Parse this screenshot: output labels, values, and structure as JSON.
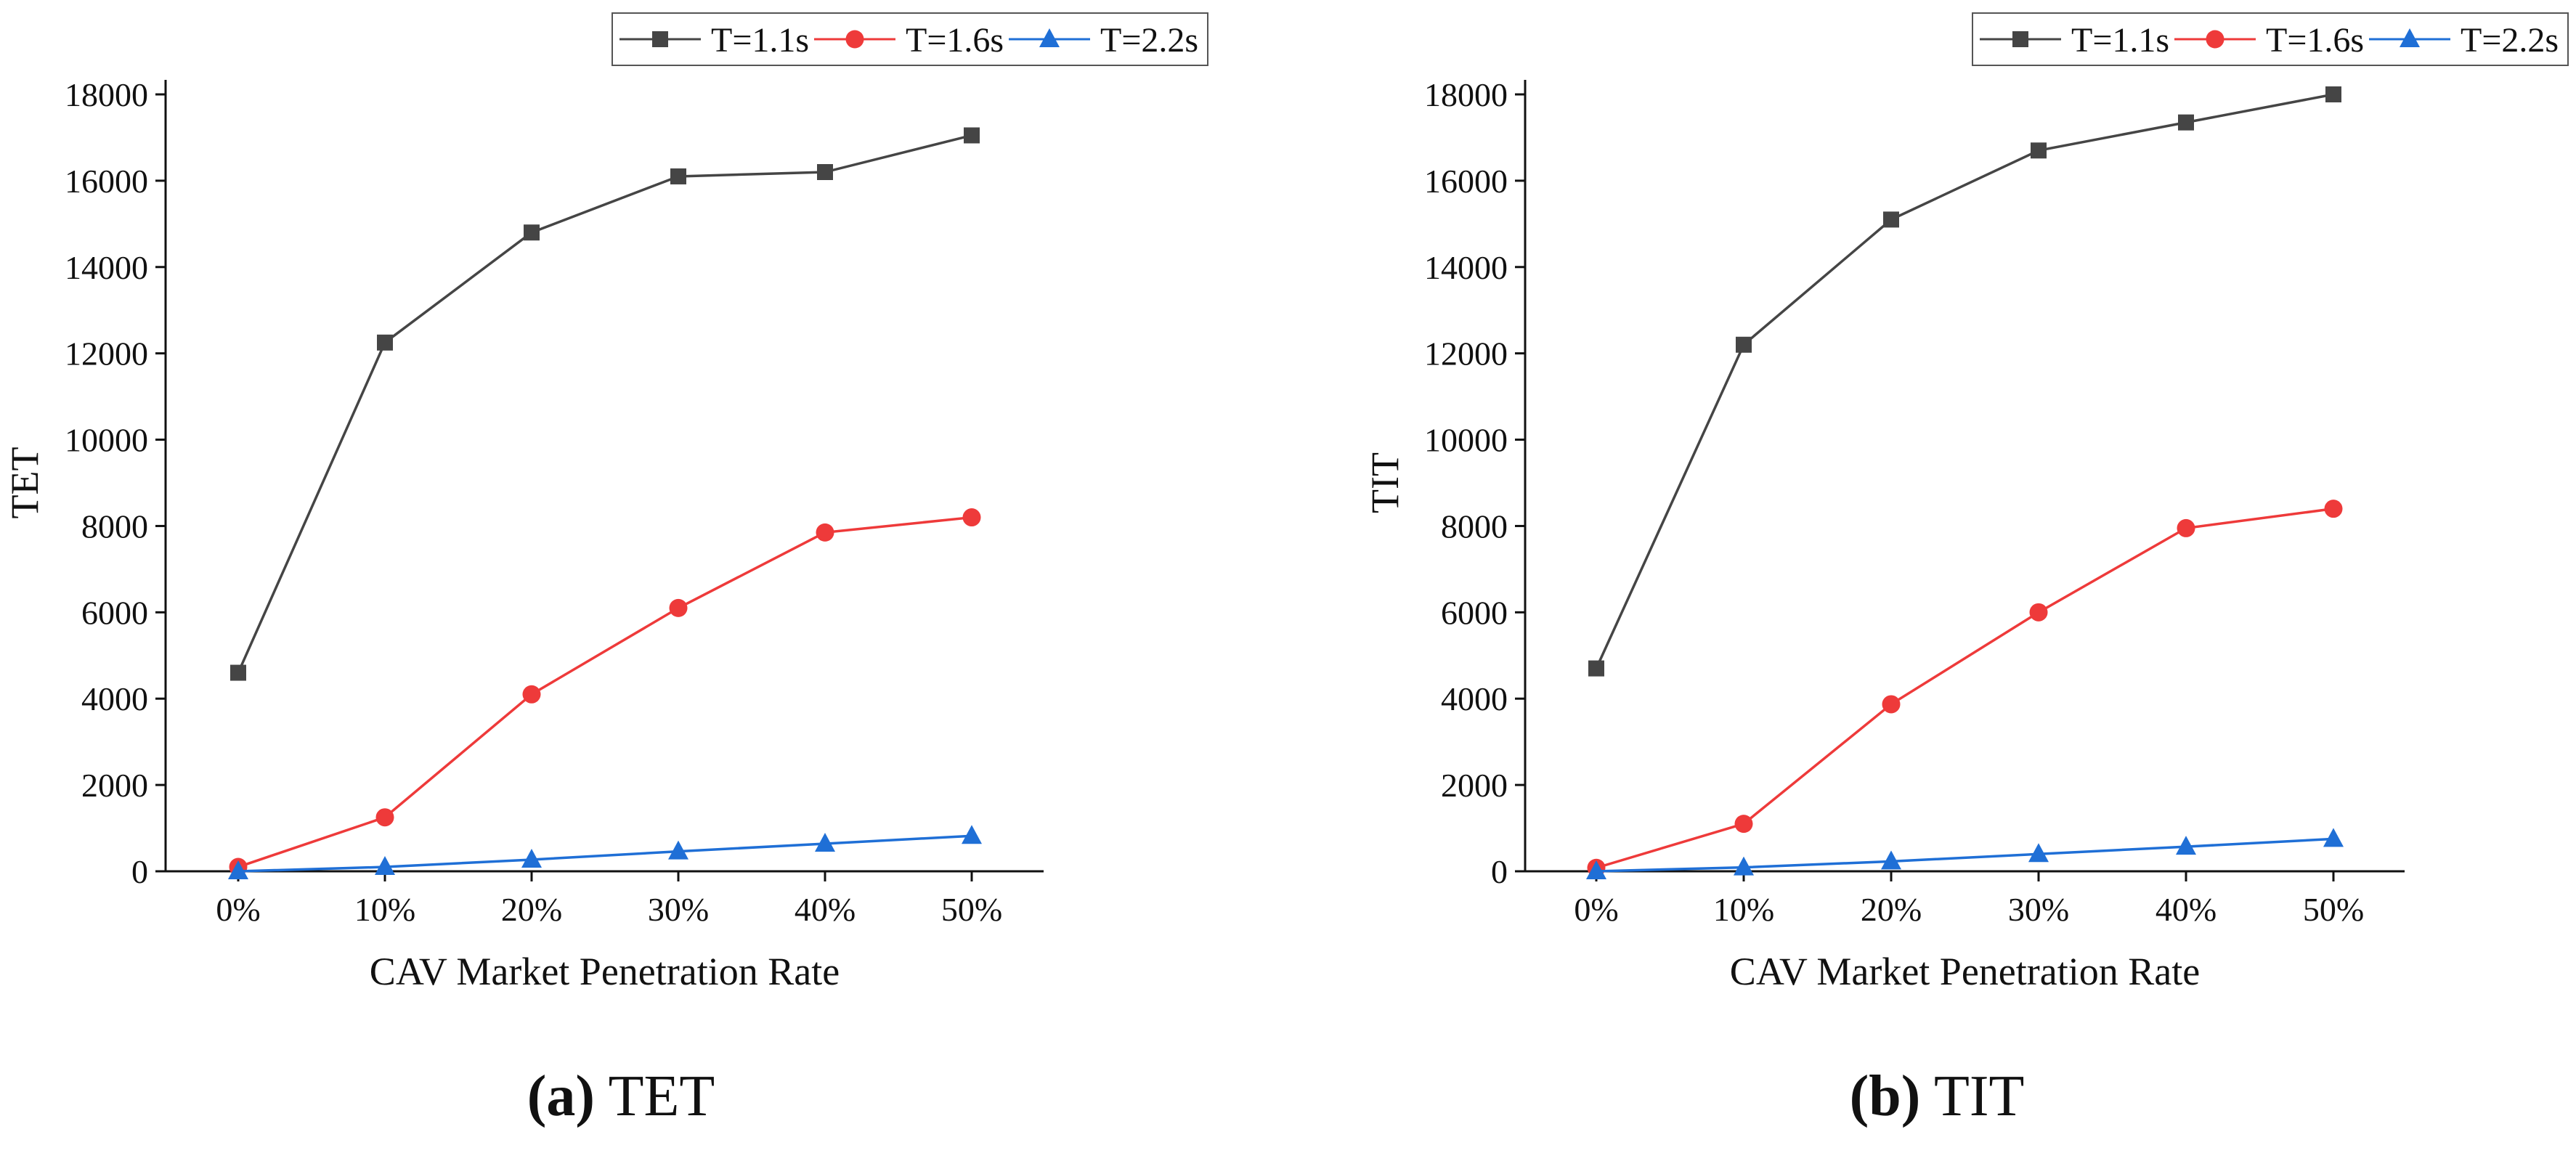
{
  "chart_data": [
    {
      "type": "line",
      "title": "",
      "xlabel": "CAV Market Penetration Rate",
      "ylabel": "TET",
      "categories": [
        "0%",
        "10%",
        "20%",
        "30%",
        "40%",
        "50%"
      ],
      "yticks": [
        "0",
        "2000",
        "4000",
        "6000",
        "8000",
        "10000",
        "12000",
        "14000",
        "16000",
        "18000"
      ],
      "ylim": [
        0,
        18000
      ],
      "legend_position": "top-right",
      "caption": {
        "label": "(a)",
        "text": "TET"
      },
      "series": [
        {
          "name": "T=1.1s",
          "color": "#454545",
          "marker": "square",
          "values": [
            4600,
            12250,
            14800,
            16100,
            16200,
            17050
          ]
        },
        {
          "name": "T=1.6s",
          "color": "#ee3a3a",
          "marker": "circle",
          "values": [
            100,
            1250,
            4100,
            6100,
            7850,
            8200
          ]
        },
        {
          "name": "T=2.2s",
          "color": "#1f6fd6",
          "marker": "triangle",
          "values": [
            0,
            100,
            270,
            460,
            640,
            820
          ]
        }
      ]
    },
    {
      "type": "line",
      "title": "",
      "xlabel": "CAV Market Penetration Rate",
      "ylabel": "TIT",
      "categories": [
        "0%",
        "10%",
        "20%",
        "30%",
        "40%",
        "50%"
      ],
      "yticks": [
        "0",
        "2000",
        "4000",
        "6000",
        "8000",
        "10000",
        "12000",
        "14000",
        "16000",
        "18000"
      ],
      "ylim": [
        0,
        18000
      ],
      "legend_position": "top-right",
      "caption": {
        "label": "(b)",
        "text": "TIT"
      },
      "series": [
        {
          "name": "T=1.1s",
          "color": "#454545",
          "marker": "square",
          "values": [
            4700,
            12200,
            15100,
            16700,
            17350,
            18000
          ]
        },
        {
          "name": "T=1.6s",
          "color": "#ee3a3a",
          "marker": "circle",
          "values": [
            80,
            1100,
            3870,
            6000,
            7950,
            8400
          ]
        },
        {
          "name": "T=2.2s",
          "color": "#1f6fd6",
          "marker": "triangle",
          "values": [
            0,
            90,
            230,
            400,
            570,
            750
          ]
        }
      ]
    }
  ]
}
